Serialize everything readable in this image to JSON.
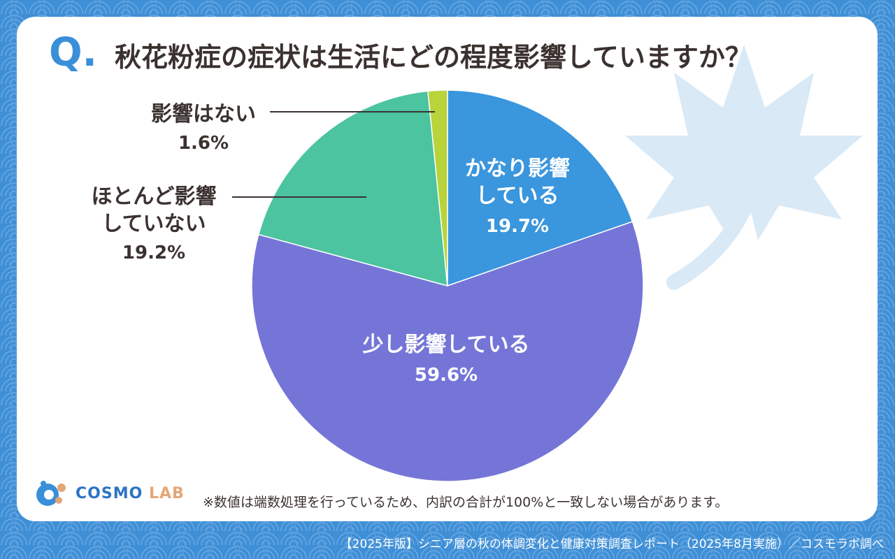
{
  "title_q": "Q.",
  "title": "秋花粉症の症状は生活にどの程度影響していますか？",
  "note": "※数値は端数処理を行っているため、内訳の合計が100%と一致しない場合があります。",
  "footer": "【2025年版】シニア層の秋の体調変化と健康対策調査レポート（2025年8月実施）／コスモラボ調べ",
  "logo": {
    "main": "COSMO",
    "sub": "LAB"
  },
  "labels": {
    "much": {
      "line1": "かなり影響",
      "line2": "している",
      "pct": "19.7%"
    },
    "some": {
      "line1": "少し影響している",
      "pct": "59.6%"
    },
    "little": {
      "line1": "ほとんど影響",
      "line2": "していない",
      "pct": "19.2%"
    },
    "none": {
      "line1": "影響はない",
      "pct": "1.6%"
    }
  },
  "colors": {
    "much": "#3a96dd",
    "some": "#7575d8",
    "little": "#4bc49f",
    "none": "#b8d43a",
    "background": "#3f8fd6"
  },
  "chart_data": {
    "type": "pie",
    "title": "秋花粉症の症状は生活にどの程度影響していますか？",
    "categories": [
      "かなり影響している",
      "少し影響している",
      "ほとんど影響していない",
      "影響はない"
    ],
    "values": [
      19.7,
      59.6,
      19.2,
      1.6
    ],
    "unit": "%",
    "start": "12 o'clock, clockwise"
  }
}
